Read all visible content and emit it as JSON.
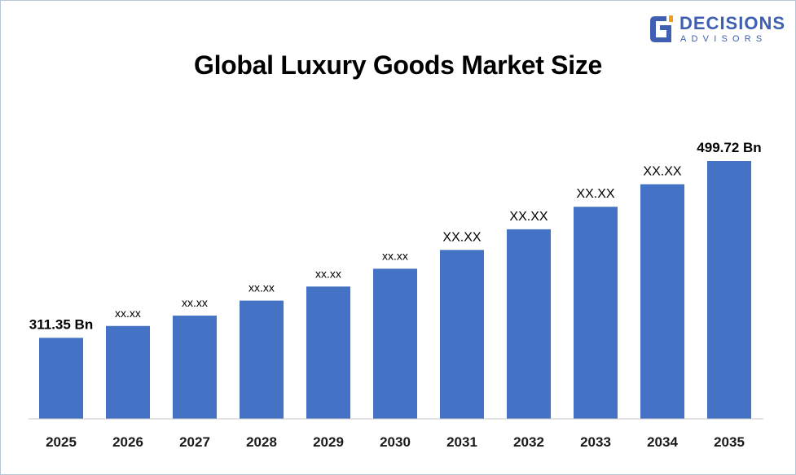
{
  "brand": {
    "line1": "DECISIONS",
    "line2": "ADVISORS",
    "color": "#3f5fb2",
    "icon": "decisions-advisors-logo-icon"
  },
  "chart_data": {
    "type": "bar",
    "title": "Global Luxury Goods Market Size",
    "xlabel": "",
    "ylabel": "",
    "categories": [
      "2025",
      "2026",
      "2027",
      "2028",
      "2029",
      "2030",
      "2031",
      "2032",
      "2033",
      "2034",
      "2035"
    ],
    "values": [
      311.35,
      324,
      335,
      351,
      366,
      385,
      405,
      427,
      451,
      475,
      499.72
    ],
    "data_labels": [
      "311.35 Bn",
      "xx.xx",
      "xx.xx",
      "xx.xx",
      "xx.xx",
      "xx.xx",
      "XX.XX",
      "XX.XX",
      "XX.XX",
      "XX.XX",
      "499.72 Bn"
    ],
    "ylim": [
      225,
      525
    ],
    "grid": false,
    "legend": "none",
    "bar_color": "#4472c4"
  }
}
